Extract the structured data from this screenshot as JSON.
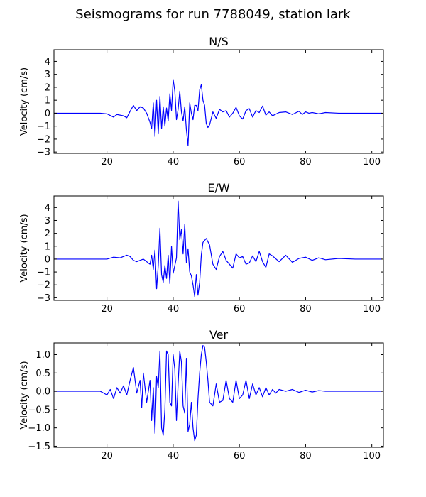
{
  "figure": {
    "title": "Seismograms for run 7788049, station lark"
  },
  "chart_data": [
    {
      "type": "line",
      "title": "N/S",
      "ylabel": "Velocity (cm/s)",
      "xlim": [
        4,
        103.5
      ],
      "ylim": [
        -3.1,
        4.9
      ],
      "xticks": [
        20,
        40,
        60,
        80,
        100
      ],
      "yticks": [
        -3,
        -2,
        -1,
        0,
        1,
        2,
        3,
        4
      ],
      "grid": false,
      "series": [
        {
          "color": "#0000ff",
          "x": [
            4,
            18,
            20,
            22,
            23,
            25,
            26,
            27,
            28,
            29,
            30,
            31,
            32,
            33,
            33.5,
            34,
            34.5,
            35,
            35.5,
            36,
            36.5,
            37,
            37.5,
            38,
            38.5,
            39,
            39.5,
            40,
            40.5,
            41,
            41.5,
            42,
            42.5,
            43,
            43.5,
            44,
            44.5,
            45,
            45.5,
            46,
            46.5,
            47,
            47.5,
            48,
            48.5,
            49,
            49.5,
            50,
            50.5,
            51,
            52,
            53,
            54,
            55,
            56,
            57,
            58,
            59,
            60,
            61,
            62,
            63,
            64,
            65,
            66,
            67,
            68,
            69,
            70,
            72,
            74,
            76,
            78,
            79,
            80,
            81,
            82,
            84,
            86,
            90,
            95,
            103
          ],
          "y": [
            0,
            0,
            -0.05,
            -0.3,
            -0.1,
            -0.2,
            -0.35,
            0.15,
            0.6,
            0.2,
            0.5,
            0.4,
            0,
            -0.7,
            -1.2,
            0.8,
            -1.8,
            1,
            -1.6,
            1.3,
            -1.2,
            0.5,
            -1,
            0.4,
            -0.6,
            1.5,
            0.2,
            2.6,
            1.7,
            -0.5,
            0.3,
            1.7,
            0.1,
            -0.6,
            0.5,
            -1.3,
            -2.5,
            0.8,
            0,
            -0.5,
            0.6,
            0.6,
            0.2,
            1.8,
            2.2,
            1,
            0.6,
            -0.8,
            -1.1,
            -0.9,
            0.1,
            -0.4,
            0.3,
            0.1,
            0.2,
            -0.3,
            0,
            0.45,
            -0.2,
            -0.45,
            0.2,
            0.35,
            -0.3,
            0.2,
            0.05,
            0.55,
            -0.15,
            0.1,
            -0.2,
            0.05,
            0.1,
            -0.1,
            0.15,
            -0.1,
            0.1,
            0,
            0.05,
            -0.05,
            0.05,
            0,
            0,
            0
          ]
        }
      ]
    },
    {
      "type": "line",
      "title": "E/W",
      "ylabel": "Velocity (cm/s)",
      "xlim": [
        4,
        103.5
      ],
      "ylim": [
        -3.2,
        4.9
      ],
      "xticks": [
        20,
        40,
        60,
        80,
        100
      ],
      "yticks": [
        -3,
        -2,
        -1,
        0,
        1,
        2,
        3,
        4
      ],
      "grid": false,
      "series": [
        {
          "color": "#0000ff",
          "x": [
            4,
            18,
            20,
            22,
            24,
            26,
            27,
            28,
            29,
            30,
            31,
            32,
            33,
            33.5,
            34,
            34.5,
            35,
            35.5,
            36,
            36.5,
            37,
            37.5,
            38,
            38.5,
            39,
            39.5,
            40,
            40.5,
            41,
            41.5,
            42,
            42.5,
            43,
            43.5,
            44,
            44.5,
            45,
            45.5,
            46,
            46.5,
            47,
            47.5,
            48,
            48.5,
            49,
            50,
            51,
            52,
            53,
            54,
            55,
            56,
            57,
            58,
            59,
            60,
            61,
            62,
            63,
            64,
            65,
            66,
            67,
            68,
            69,
            70,
            72,
            74,
            76,
            78,
            80,
            82,
            84,
            86,
            90,
            95,
            103
          ],
          "y": [
            0,
            0,
            0,
            0.15,
            0.1,
            0.3,
            0.2,
            -0.1,
            -0.2,
            -0.1,
            0,
            -0.2,
            -0.4,
            0.3,
            -0.8,
            0.7,
            -2.3,
            -0.5,
            2.4,
            -1.2,
            -1.8,
            -0.5,
            -1.5,
            0.3,
            -1.9,
            1,
            -1.1,
            -0.5,
            0.1,
            4.5,
            1.5,
            2.3,
            0.4,
            2.7,
            -0.3,
            0.8,
            -1,
            -1.3,
            -2,
            -2.9,
            -1.2,
            -2.8,
            -1.8,
            0.3,
            1.3,
            1.6,
            1.1,
            -0.4,
            -0.8,
            0.2,
            0.6,
            -0.1,
            -0.4,
            -0.7,
            0.4,
            0.1,
            0.2,
            -0.4,
            -0.3,
            0.25,
            -0.2,
            0.6,
            -0.2,
            -0.65,
            0.4,
            0.25,
            -0.2,
            0.3,
            -0.25,
            0.05,
            0.15,
            -0.1,
            0.1,
            -0.05,
            0.05,
            0,
            0
          ]
        }
      ]
    },
    {
      "type": "line",
      "title": "Ver",
      "ylabel": "Velocity (cm/s)",
      "xlim": [
        4,
        103.5
      ],
      "ylim": [
        -1.53,
        1.32
      ],
      "xticks": [
        20,
        40,
        60,
        80,
        100
      ],
      "yticks": [
        -1.5,
        -1.0,
        -0.5,
        0.0,
        0.5,
        1.0
      ],
      "ytick_labels": [
        "−1.5",
        "−1.0",
        "−0.5",
        "0.0",
        "0.5",
        "1.0"
      ],
      "grid": false,
      "series": [
        {
          "color": "#0000ff",
          "x": [
            4,
            18,
            19,
            20,
            21,
            22,
            23,
            24,
            25,
            26,
            27,
            28,
            29,
            30,
            30.5,
            31,
            32,
            33,
            33.5,
            34,
            34.5,
            35,
            35.5,
            36,
            36.5,
            37,
            37.5,
            38,
            38.5,
            39,
            39.5,
            40,
            40.5,
            41,
            41.5,
            42,
            42.5,
            43,
            43.5,
            44,
            44.5,
            45,
            45.5,
            46,
            46.5,
            47,
            47.5,
            48,
            48.5,
            49,
            49.5,
            50,
            50.5,
            51,
            52,
            53,
            54,
            55,
            56,
            57,
            58,
            59,
            60,
            61,
            62,
            63,
            64,
            65,
            66,
            67,
            68,
            69,
            70,
            71,
            72,
            74,
            76,
            78,
            80,
            82,
            84,
            86,
            88,
            90,
            95,
            103
          ],
          "y": [
            0,
            0,
            -0.05,
            -0.1,
            0.05,
            -0.2,
            0.1,
            -0.05,
            0.15,
            -0.1,
            0.3,
            0.65,
            -0.05,
            0.3,
            -0.45,
            0.5,
            -0.3,
            0.3,
            -0.8,
            0.1,
            -1.15,
            0.4,
            0.1,
            1.1,
            -1,
            -1.2,
            -0.5,
            1.1,
            1,
            -0.3,
            -0.4,
            1,
            0.6,
            -0.8,
            0.2,
            1.1,
            0.8,
            -0.4,
            -0.6,
            0.9,
            -1.1,
            -0.9,
            -0.3,
            -1,
            -1.35,
            -1.2,
            -0.2,
            0.5,
            1,
            1.25,
            1.2,
            0.8,
            0.3,
            -0.3,
            -0.4,
            0.2,
            -0.3,
            -0.25,
            0.3,
            -0.2,
            -0.3,
            0.3,
            -0.2,
            -0.1,
            0.3,
            -0.2,
            0.2,
            -0.1,
            0.1,
            -0.15,
            0.1,
            -0.1,
            0.05,
            -0.05,
            0.05,
            0,
            0.05,
            -0.03,
            0.03,
            -0.02,
            0.02,
            0,
            0,
            0,
            0,
            0
          ]
        }
      ]
    }
  ]
}
